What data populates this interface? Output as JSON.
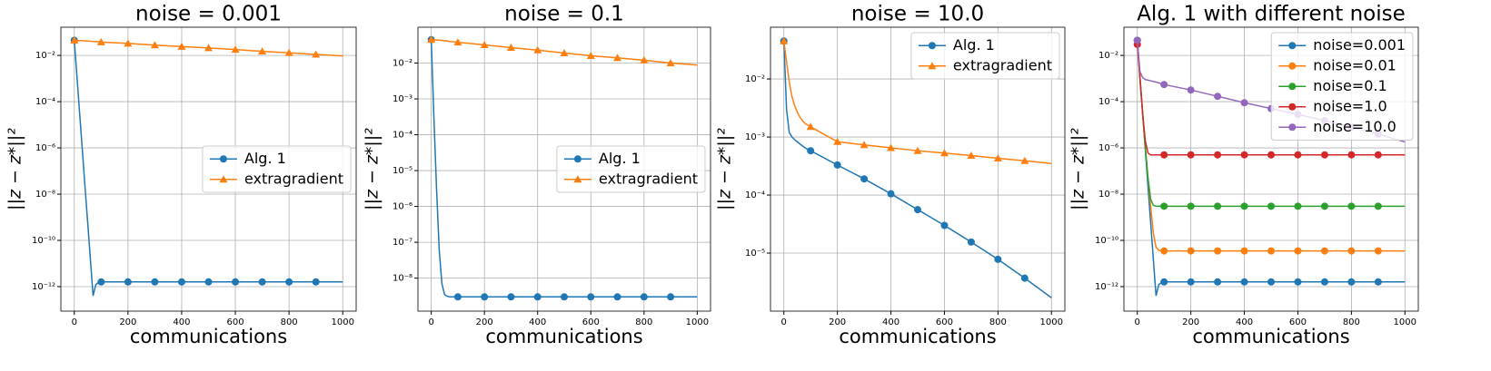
{
  "chart_data": [
    {
      "type": "line",
      "title": "noise = 0.001",
      "xlabel": "communications",
      "ylabel": "||z − z*||²",
      "x": [
        0,
        10,
        20,
        30,
        40,
        50,
        60,
        70,
        80,
        90,
        100,
        200,
        300,
        400,
        500,
        600,
        700,
        800,
        900,
        1000
      ],
      "xlim": [
        -50,
        1050
      ],
      "xticks": [
        0,
        200,
        400,
        600,
        800,
        1000
      ],
      "ylim": [
        8.7e-14,
        0.166
      ],
      "log_y": true,
      "grid": true,
      "legend_loc": "center right",
      "yticks": [
        {
          "value": 1e-12,
          "label": "10⁻¹²"
        },
        {
          "value": 1e-10,
          "label": "10⁻¹⁰"
        },
        {
          "value": 1e-08,
          "label": "10⁻⁸"
        },
        {
          "value": 1e-06,
          "label": "10⁻⁶"
        },
        {
          "value": 0.0001,
          "label": "10⁻⁴"
        },
        {
          "value": 0.01,
          "label": "10⁻²"
        }
      ],
      "series": [
        {
          "name": "Alg. 1",
          "color": "#1f77b4",
          "marker": "o",
          "values": [
            0.045,
            0.0012,
            3e-05,
            8e-07,
            2e-08,
            5.6e-10,
            1.5e-11,
            4e-13,
            1.2e-12,
            1.5e-12,
            1.6e-12,
            1.6e-12,
            1.6e-12,
            1.6e-12,
            1.6e-12,
            1.6e-12,
            1.6e-12,
            1.6e-12,
            1.6e-12,
            1.6e-12
          ]
        },
        {
          "name": "extragradient",
          "color": "#ff7f0e",
          "marker": "^",
          "values": [
            0.045,
            0.0445,
            0.044,
            0.0435,
            0.043,
            0.042,
            0.041,
            0.04,
            0.0395,
            0.039,
            0.038,
            0.033,
            0.028,
            0.024,
            0.021,
            0.018,
            0.015,
            0.013,
            0.011,
            0.0095
          ]
        }
      ]
    },
    {
      "type": "line",
      "title": "noise = 0.1",
      "xlabel": "communications",
      "ylabel": "||z − z*||²",
      "x": [
        0,
        10,
        20,
        30,
        40,
        50,
        60,
        70,
        80,
        90,
        100,
        200,
        300,
        400,
        500,
        600,
        700,
        800,
        900,
        1000
      ],
      "xlim": [
        -50,
        1050
      ],
      "xticks": [
        0,
        200,
        400,
        600,
        800,
        1000
      ],
      "ylim": [
        1.2e-09,
        0.1
      ],
      "log_y": true,
      "grid": true,
      "legend_loc": "center right",
      "yticks": [
        {
          "value": 1e-08,
          "label": "10⁻⁸"
        },
        {
          "value": 1e-07,
          "label": "10⁻⁷"
        },
        {
          "value": 1e-06,
          "label": "10⁻⁶"
        },
        {
          "value": 1e-05,
          "label": "10⁻⁵"
        },
        {
          "value": 0.0001,
          "label": "10⁻⁴"
        },
        {
          "value": 0.001,
          "label": "10⁻³"
        },
        {
          "value": 0.01,
          "label": "10⁻²"
        }
      ],
      "series": [
        {
          "name": "Alg. 1",
          "color": "#1f77b4",
          "marker": "o",
          "values": [
            0.045,
            0.0003,
            3e-06,
            6e-08,
            7e-09,
            3.5e-09,
            3.1e-09,
            3e-09,
            3e-09,
            3e-09,
            3e-09,
            3e-09,
            3e-09,
            3e-09,
            3e-09,
            3e-09,
            3e-09,
            3e-09,
            3e-09,
            3e-09
          ]
        },
        {
          "name": "extragradient",
          "color": "#ff7f0e",
          "marker": "^",
          "values": [
            0.045,
            0.0445,
            0.044,
            0.0435,
            0.043,
            0.042,
            0.041,
            0.04,
            0.0395,
            0.039,
            0.038,
            0.032,
            0.027,
            0.023,
            0.019,
            0.016,
            0.014,
            0.012,
            0.01,
            0.0088
          ]
        }
      ]
    },
    {
      "type": "line",
      "title": "noise = 10.0",
      "xlabel": "communications",
      "ylabel": "||z − z*||²",
      "x": [
        0,
        10,
        20,
        30,
        40,
        50,
        60,
        70,
        80,
        90,
        100,
        200,
        300,
        400,
        500,
        600,
        700,
        800,
        900,
        1000
      ],
      "xlim": [
        -50,
        1050
      ],
      "xticks": [
        0,
        200,
        400,
        600,
        800,
        1000
      ],
      "ylim": [
        1e-06,
        0.078
      ],
      "log_y": true,
      "grid": true,
      "legend_loc": "upper right",
      "yticks": [
        {
          "value": 1e-05,
          "label": "10⁻⁵"
        },
        {
          "value": 0.0001,
          "label": "10⁻⁴"
        },
        {
          "value": 0.001,
          "label": "10⁻³"
        },
        {
          "value": 0.01,
          "label": "10⁻²"
        }
      ],
      "series": [
        {
          "name": "Alg. 1",
          "color": "#1f77b4",
          "marker": "o",
          "values": [
            0.045,
            0.003,
            0.0012,
            0.001,
            0.0009,
            0.00083,
            0.00076,
            0.0007,
            0.00065,
            0.00061,
            0.00058,
            0.00033,
            0.00019,
            0.000105,
            5.6e-05,
            3e-05,
            1.55e-05,
            7.8e-06,
            3.7e-06,
            1.7e-06
          ]
        },
        {
          "name": "extragradient",
          "color": "#ff7f0e",
          "marker": "^",
          "values": [
            0.045,
            0.02,
            0.009,
            0.005,
            0.0035,
            0.0027,
            0.0022,
            0.0019,
            0.0017,
            0.0016,
            0.0015,
            0.00083,
            0.00073,
            0.00065,
            0.00058,
            0.00053,
            0.00048,
            0.00043,
            0.00039,
            0.00035
          ]
        }
      ]
    },
    {
      "type": "line",
      "title": "Alg. 1 with different noise",
      "xlabel": "communications",
      "ylabel": "||z − z*||²",
      "x": [
        0,
        10,
        20,
        30,
        40,
        50,
        60,
        70,
        80,
        90,
        100,
        200,
        300,
        400,
        500,
        600,
        700,
        800,
        900,
        1000
      ],
      "xlim": [
        -50,
        1050
      ],
      "xticks": [
        0,
        200,
        400,
        600,
        800,
        1000
      ],
      "ylim": [
        8.7e-14,
        0.166
      ],
      "log_y": true,
      "grid": true,
      "legend_loc": "upper right",
      "yticks": [
        {
          "value": 1e-12,
          "label": "10⁻¹²"
        },
        {
          "value": 1e-10,
          "label": "10⁻¹⁰"
        },
        {
          "value": 1e-08,
          "label": "10⁻⁸"
        },
        {
          "value": 1e-06,
          "label": "10⁻⁶"
        },
        {
          "value": 0.0001,
          "label": "10⁻⁴"
        },
        {
          "value": 0.01,
          "label": "10⁻²"
        }
      ],
      "series": [
        {
          "name": "noise=0.001",
          "color": "#1f77b4",
          "marker": "o",
          "values": [
            0.045,
            0.0012,
            3e-05,
            8e-07,
            2e-08,
            5.6e-10,
            1.5e-11,
            4e-13,
            1.2e-12,
            1.5e-12,
            1.6e-12,
            1.6e-12,
            1.6e-12,
            1.6e-12,
            1.6e-12,
            1.6e-12,
            1.6e-12,
            1.6e-12,
            1.6e-12,
            1.6e-12
          ]
        },
        {
          "name": "noise=0.01",
          "color": "#ff7f0e",
          "marker": "o",
          "values": [
            0.03,
            0.001,
            3e-05,
            1e-06,
            5e-08,
            3e-09,
            2e-10,
            5e-11,
            3.7e-11,
            3.5e-11,
            3.5e-11,
            3.5e-11,
            3.5e-11,
            3.5e-11,
            3.5e-11,
            3.5e-11,
            3.5e-11,
            3.5e-11,
            3.5e-11,
            3.5e-11
          ]
        },
        {
          "name": "noise=0.1",
          "color": "#2ca02c",
          "marker": "o",
          "values": [
            0.045,
            0.001,
            3e-05,
            1e-06,
            5e-08,
            6e-09,
            3.3e-09,
            3e-09,
            3e-09,
            3e-09,
            3e-09,
            3e-09,
            3e-09,
            3e-09,
            3e-09,
            3e-09,
            3e-09,
            3e-09,
            3e-09,
            3e-09
          ]
        },
        {
          "name": "noise=1.0",
          "color": "#d62728",
          "marker": "o",
          "values": [
            0.03,
            0.001,
            3e-05,
            2e-06,
            6e-07,
            5e-07,
            5e-07,
            5e-07,
            5e-07,
            5e-07,
            5e-07,
            5e-07,
            5e-07,
            5e-07,
            5e-07,
            5e-07,
            5e-07,
            5e-07,
            5e-07,
            5e-07
          ]
        },
        {
          "name": "noise=10.0",
          "color": "#9467bd",
          "marker": "o",
          "values": [
            0.045,
            0.002,
            0.0011,
            0.0009,
            0.00085,
            0.0008,
            0.00075,
            0.0007,
            0.00065,
            0.0006,
            0.00055,
            0.00032,
            0.00017,
            9e-05,
            5e-05,
            2.8e-05,
            1.5e-05,
            8e-06,
            4e-06,
            1.8e-06
          ]
        }
      ]
    }
  ]
}
